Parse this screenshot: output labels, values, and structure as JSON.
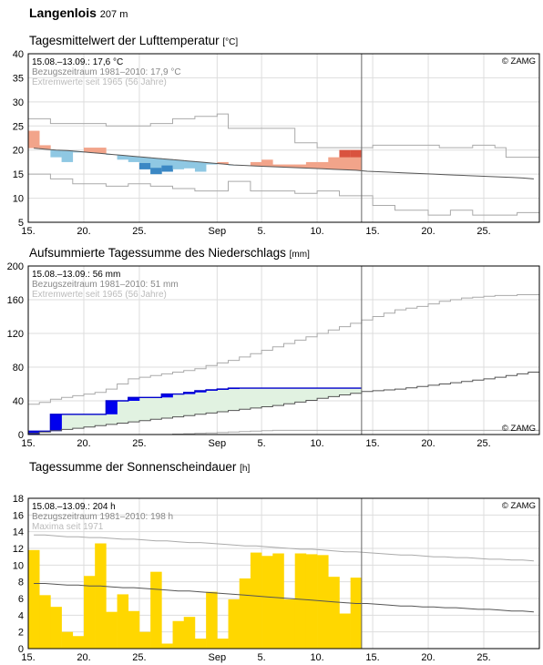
{
  "header": {
    "station": "Langenlois",
    "altitude": "207 m"
  },
  "copyright": "© ZAMG",
  "panels": [
    {
      "title": "Tagesmittelwert der Lufttemperatur",
      "unit": "[°C]",
      "info": [
        "15.08.–13.09.: 17,6 °C",
        "Bezugszeitraum 1981–2010: 17,9 °C",
        "Extremwerte seit 1965 (56 Jahre)"
      ]
    },
    {
      "title": "Aufsummierte Tagessumme des Niederschlags",
      "unit": "[mm]",
      "info": [
        "15.08.–13.09.: 56 mm",
        "Bezugszeitraum 1981–2010: 51 mm",
        "Extremwerte seit 1965 (56 Jahre)"
      ]
    },
    {
      "title": "Tagessumme der Sonnenscheindauer",
      "unit": "[h]",
      "info": [
        "15.08.–13.09.: 204 h",
        "Bezugszeitraum 1981–2010: 198 h",
        "Maxima seit 1971"
      ]
    }
  ],
  "colors": {
    "warm": "#f2a48a",
    "warm_strong": "#d9533f",
    "cool": "#8fc8e3",
    "cool_strong": "#3b88c4",
    "precip_line": "#0000cc",
    "precip_fill": "#e1f2e1",
    "precip_bar": "#0000ee",
    "sun": "#ffd700",
    "grid": "#dddddd",
    "extreme": "#aaaaaa",
    "mean": "#555555"
  },
  "chart_data": [
    {
      "type": "area",
      "title": "Tagesmittelwert der Lufttemperatur",
      "ylabel": "°C",
      "ylim": [
        5,
        40
      ],
      "yticks": [
        5,
        10,
        15,
        20,
        25,
        30,
        35,
        40
      ],
      "x_start": "15.08.",
      "today_index": 30,
      "n_days": 46,
      "xticks": [
        {
          "day": 0,
          "label": "15."
        },
        {
          "day": 5,
          "label": "20."
        },
        {
          "day": 10,
          "label": "25."
        },
        {
          "day": 17,
          "label": "Sep"
        },
        {
          "day": 21,
          "label": "5."
        },
        {
          "day": 26,
          "label": "10."
        },
        {
          "day": 31,
          "label": "15."
        },
        {
          "day": 36,
          "label": "20."
        },
        {
          "day": 41,
          "label": "25."
        }
      ],
      "series": [
        {
          "name": "",
          "values": [
            24.0,
            21.0,
            18.5,
            17.5,
            19.5,
            20.5,
            20.5,
            19.0,
            18.0,
            17.5,
            16.0,
            15.0,
            15.5,
            16.0,
            16.2,
            15.5,
            17.0,
            17.5,
            16.8,
            16.8,
            17.5,
            18.0,
            17.0,
            17.0,
            17.0,
            17.5,
            17.5,
            18.5,
            20.0,
            20.0
          ]
        },
        {
          "name": "Bezugszeitraum 1981–2010",
          "values": [
            20.4,
            20.2,
            20.0,
            19.9,
            19.7,
            19.5,
            19.3,
            19.1,
            18.9,
            18.7,
            18.5,
            18.3,
            18.1,
            17.9,
            17.7,
            17.5,
            17.3,
            17.1,
            16.9,
            16.8,
            16.7,
            16.6,
            16.5,
            16.4,
            16.3,
            16.2,
            16.1,
            16.0,
            15.9,
            15.8,
            15.6,
            15.5,
            15.4,
            15.3,
            15.2,
            15.1,
            15.0,
            14.9,
            14.8,
            14.7,
            14.6,
            14.5,
            14.4,
            14.3,
            14.2,
            14.0
          ]
        },
        {
          "name": "max",
          "values": [
            26.5,
            26.5,
            25.5,
            25.5,
            25.5,
            25.5,
            25.5,
            25.0,
            25.0,
            25.0,
            25.0,
            25.5,
            25.5,
            26.5,
            26.5,
            27.0,
            27.0,
            27.5,
            24.5,
            24.5,
            24.5,
            24.5,
            24.5,
            24.5,
            21.5,
            21.5,
            20.5,
            20.5,
            20.5,
            20.5,
            20.5,
            21.0,
            21.0,
            21.0,
            21.0,
            21.0,
            21.0,
            20.5,
            20.5,
            20.5,
            21.0,
            21.0,
            20.5,
            18.5,
            18.5,
            18.5
          ]
        },
        {
          "name": "min",
          "values": [
            15.0,
            15.0,
            14.0,
            14.0,
            13.0,
            13.0,
            13.0,
            12.5,
            12.5,
            13.0,
            13.0,
            12.5,
            12.5,
            12.0,
            12.0,
            11.5,
            11.5,
            11.5,
            13.5,
            13.5,
            11.5,
            11.5,
            11.5,
            11.5,
            11.0,
            11.0,
            11.5,
            11.5,
            10.5,
            10.5,
            10.5,
            8.5,
            8.5,
            7.5,
            7.5,
            7.5,
            6.5,
            6.5,
            7.5,
            7.5,
            6.5,
            6.5,
            6.5,
            6.5,
            7.0,
            7.0
          ]
        }
      ]
    },
    {
      "type": "area",
      "title": "Aufsummierte Tagessumme des Niederschlags",
      "ylabel": "mm",
      "ylim": [
        0,
        200
      ],
      "yticks": [
        0,
        40,
        80,
        120,
        160,
        200
      ],
      "x_start": "15.08.",
      "today_index": 30,
      "n_days": 46,
      "xticks": [
        {
          "day": 0,
          "label": "15."
        },
        {
          "day": 5,
          "label": "20."
        },
        {
          "day": 10,
          "label": "25."
        },
        {
          "day": 17,
          "label": "Sep"
        },
        {
          "day": 21,
          "label": "5."
        },
        {
          "day": 26,
          "label": "10."
        },
        {
          "day": 31,
          "label": "15."
        },
        {
          "day": 36,
          "label": "20."
        },
        {
          "day": 41,
          "label": "25."
        }
      ],
      "series": [
        {
          "name": "",
          "values": [
            4,
            4,
            24,
            24,
            24,
            24,
            24,
            40,
            40,
            44,
            44,
            44,
            48,
            48,
            50,
            52,
            53,
            54,
            55,
            55,
            55,
            55,
            55,
            55,
            55,
            55,
            55,
            55,
            55,
            55
          ]
        },
        {
          "name": "Bezugszeitraum 1981–2010",
          "values": [
            1.5,
            3.0,
            4.5,
            6.0,
            7.5,
            9.0,
            10.5,
            12.0,
            13.5,
            15.0,
            16.5,
            18.0,
            19.5,
            21.0,
            22.5,
            24.0,
            25.5,
            27.0,
            28.5,
            30.0,
            31.5,
            33.0,
            34.5,
            36.5,
            38.5,
            40.5,
            43.0,
            45.0,
            47.0,
            49.0,
            51.0,
            52.0,
            53.0,
            54.0,
            55.5,
            57.0,
            58.5,
            60.0,
            61.5,
            63.0,
            64.5,
            66.0,
            68.0,
            70.0,
            72.0,
            74.0
          ]
        },
        {
          "name": "max",
          "values": [
            36,
            38,
            42,
            44,
            46,
            48,
            50,
            54,
            60,
            66,
            68,
            70,
            72,
            74,
            76,
            78,
            82,
            85,
            88,
            92,
            96,
            100,
            104,
            108,
            112,
            116,
            120,
            124,
            128,
            132,
            136,
            140,
            144,
            148,
            150,
            152,
            155,
            158,
            160,
            162,
            163,
            164,
            165,
            165,
            166,
            166
          ]
        },
        {
          "name": "min",
          "values": [
            0,
            0,
            0,
            0,
            0,
            0,
            0,
            0,
            0,
            0,
            0,
            0,
            0,
            0.5,
            1,
            1.5,
            2,
            2.5,
            3,
            3.5,
            4,
            4.5,
            5,
            5,
            5,
            5,
            5,
            5,
            5,
            5,
            5,
            5,
            5,
            5,
            5,
            5,
            5,
            5,
            5,
            5,
            5,
            5,
            5,
            5,
            5,
            5
          ]
        }
      ]
    },
    {
      "type": "bar",
      "title": "Tagessumme der Sonnenscheindauer",
      "ylabel": "h",
      "ylim": [
        0,
        18
      ],
      "yticks": [
        0,
        2,
        4,
        6,
        8,
        10,
        12,
        14,
        16,
        18
      ],
      "x_start": "15.08.",
      "today_index": 30,
      "n_days": 46,
      "xticks": [
        {
          "day": 0,
          "label": "15."
        },
        {
          "day": 5,
          "label": "20."
        },
        {
          "day": 10,
          "label": "25."
        },
        {
          "day": 17,
          "label": "Sep"
        },
        {
          "day": 21,
          "label": "5."
        },
        {
          "day": 26,
          "label": "10."
        },
        {
          "day": 31,
          "label": "15."
        },
        {
          "day": 36,
          "label": "20."
        },
        {
          "day": 41,
          "label": "25."
        }
      ],
      "series": [
        {
          "name": "",
          "values": [
            11.8,
            6.4,
            5.0,
            2.0,
            1.5,
            8.7,
            12.6,
            4.4,
            6.5,
            4.5,
            2.0,
            9.2,
            0.6,
            3.3,
            3.8,
            1.2,
            6.8,
            1.2,
            5.9,
            8.4,
            11.5,
            11.1,
            11.4,
            5.9,
            11.4,
            11.3,
            11.2,
            8.6,
            4.2,
            8.5
          ]
        },
        {
          "name": "Bezugszeitraum 1981–2010",
          "values": [
            7.8,
            7.8,
            7.7,
            7.6,
            7.6,
            7.5,
            7.5,
            7.4,
            7.3,
            7.3,
            7.2,
            7.1,
            7.0,
            6.9,
            6.9,
            6.8,
            6.7,
            6.6,
            6.5,
            6.4,
            6.3,
            6.2,
            6.1,
            6.0,
            5.9,
            5.8,
            5.7,
            5.6,
            5.5,
            5.4,
            5.4,
            5.3,
            5.2,
            5.1,
            5.1,
            5.0,
            5.0,
            4.9,
            4.9,
            4.8,
            4.7,
            4.7,
            4.6,
            4.5,
            4.5,
            4.4
          ]
        },
        {
          "name": "Maxima seit 1971",
          "values": [
            13.6,
            13.6,
            13.5,
            13.4,
            13.4,
            13.3,
            13.3,
            13.2,
            13.1,
            13.1,
            13.0,
            12.9,
            12.9,
            12.8,
            12.7,
            12.7,
            12.6,
            12.5,
            12.4,
            12.3,
            12.3,
            12.2,
            12.1,
            12.0,
            11.9,
            11.9,
            11.8,
            11.7,
            11.6,
            11.6,
            11.5,
            11.4,
            11.3,
            11.2,
            11.2,
            11.1,
            11.0,
            11.0,
            10.9,
            10.9,
            10.8,
            10.7,
            10.7,
            10.6,
            10.6,
            10.5
          ]
        }
      ]
    }
  ]
}
